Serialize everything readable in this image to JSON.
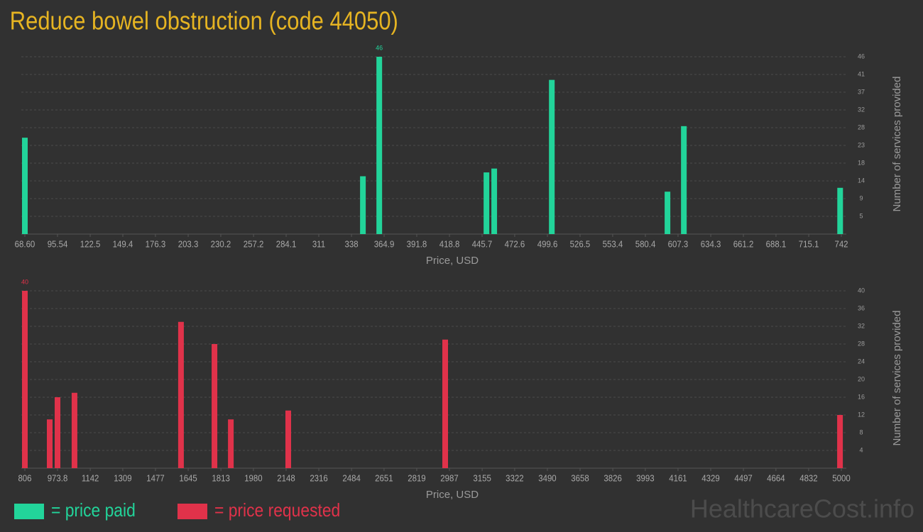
{
  "title": "Reduce bowel obstruction (code 44050)",
  "watermark": "HealthcareCost.info",
  "chart_data": [
    {
      "type": "bar",
      "x": [
        68.6,
        347.4,
        360.9,
        449.3,
        455.7,
        503.2,
        598.6,
        612.1,
        741
      ],
      "series": [
        {
          "name": "= price paid",
          "color": "#22d49a",
          "values": [
            25,
            15,
            46,
            16,
            17,
            40,
            11,
            28,
            12
          ]
        }
      ],
      "xlabel": "Price, USD",
      "ylabel": "Number of services provided",
      "xlim": [
        68.6,
        742
      ],
      "xticks": [
        {
          "value": 68.6,
          "label": "68.60"
        },
        95.54,
        122.5,
        149.4,
        176.3,
        203.3,
        230.2,
        257.2,
        284.1,
        311,
        338,
        364.9,
        391.8,
        418.8,
        445.7,
        472.6,
        499.6,
        526.5,
        553.4,
        580.4,
        607.3,
        634.3,
        661.2,
        688.1,
        715.1,
        742
      ],
      "ylim": [
        0,
        46
      ],
      "yticks": [
        {
          "value": 4.6,
          "label": "5"
        },
        {
          "value": 9.2,
          "label": "9"
        },
        {
          "value": 13.8,
          "label": "14"
        },
        {
          "value": 18.4,
          "label": "18"
        },
        23,
        {
          "value": 27.6,
          "label": "28"
        },
        {
          "value": 32.2,
          "label": "32"
        },
        {
          "value": 36.8,
          "label": "37"
        },
        {
          "value": 41.4,
          "label": "41"
        },
        46
      ],
      "grid": true
    },
    {
      "type": "bar",
      "x": [
        806,
        933.6,
        973.8,
        1061,
        1608,
        1780,
        1864,
        2159,
        2965,
        4993
      ],
      "series": [
        {
          "name": "= price requested",
          "color": "#e0324a",
          "values": [
            40,
            11,
            16,
            17,
            33,
            28,
            11,
            13,
            29,
            12
          ]
        }
      ],
      "xlabel": "Price, USD",
      "ylabel": "Number of services provided",
      "xlim": [
        806,
        5000
      ],
      "xticks": [
        806,
        973.8,
        1142,
        1309,
        1477,
        1645,
        1813,
        1980,
        2148,
        2316,
        2484,
        2651,
        2819,
        2987,
        3155,
        3322,
        3490,
        3658,
        3826,
        3993,
        4161,
        4329,
        4497,
        4664,
        4832,
        5000
      ],
      "ylim": [
        0,
        40
      ],
      "yticks": [
        4,
        8,
        12,
        16,
        20,
        24,
        28,
        32,
        36,
        40
      ],
      "grid": true
    }
  ]
}
